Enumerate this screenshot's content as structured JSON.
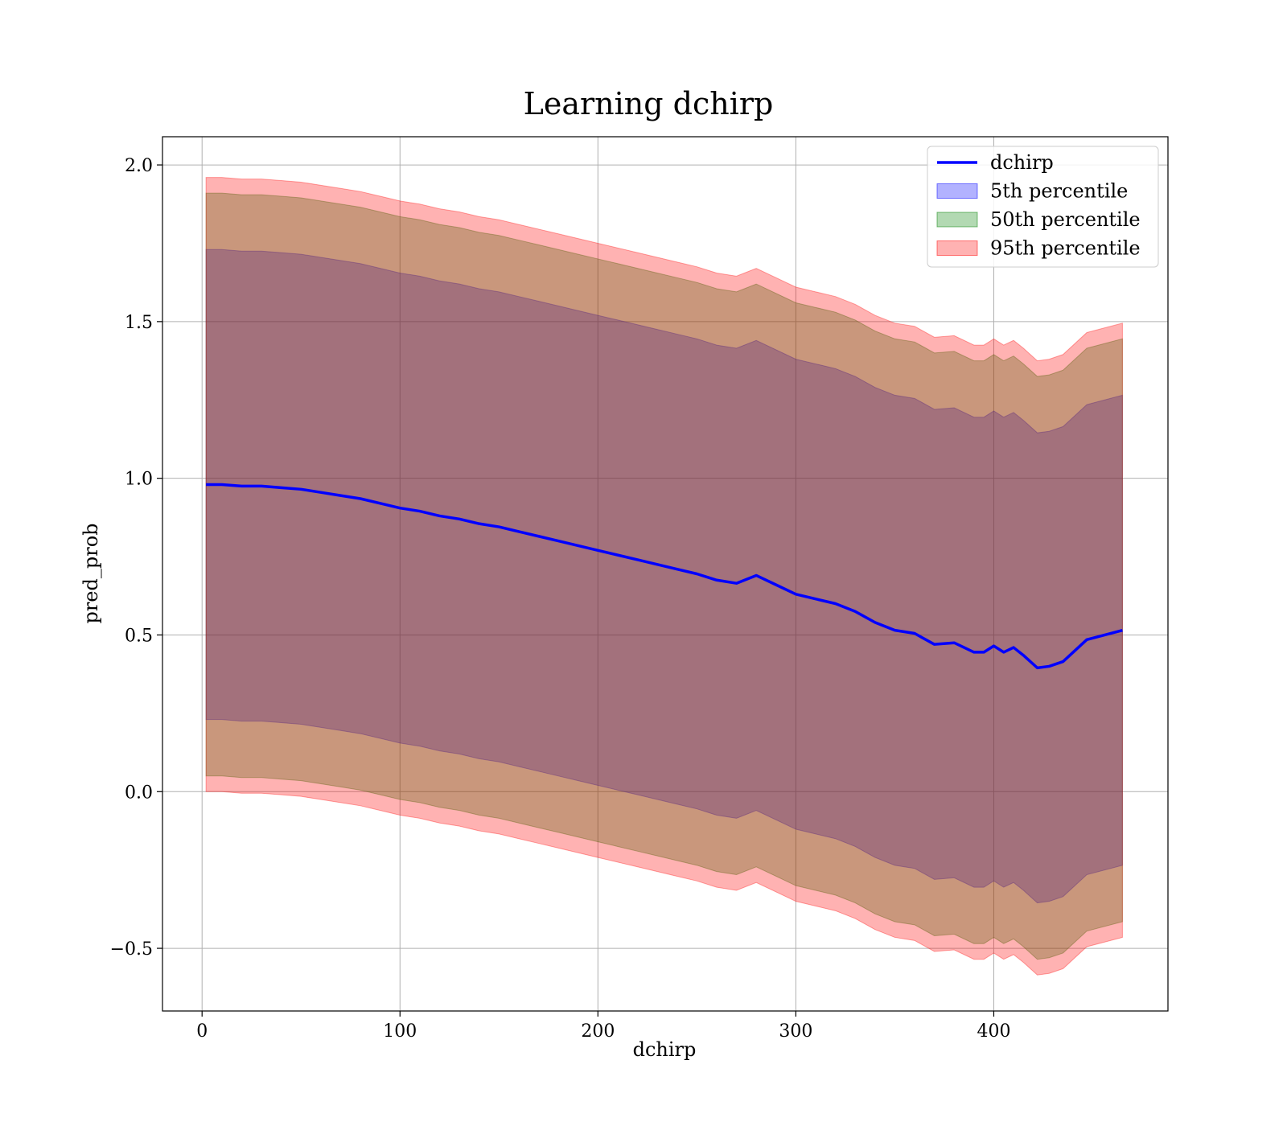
{
  "chart_data": {
    "type": "area",
    "title": "Learning dchirp",
    "xlabel": "dchirp",
    "ylabel": "pred_prob",
    "xlim": [
      -20,
      488
    ],
    "ylim": [
      -0.7,
      2.09
    ],
    "xticks": [
      0,
      100,
      200,
      300,
      400
    ],
    "xtick_labels": [
      "0",
      "100",
      "200",
      "300",
      "400"
    ],
    "yticks": [
      -0.5,
      0.0,
      0.5,
      1.0,
      1.5,
      2.0
    ],
    "ytick_labels": [
      "−0.5",
      "0.0",
      "0.5",
      "1.0",
      "1.5",
      "2.0"
    ],
    "grid": true,
    "legend_position": "upper right",
    "colors": {
      "line": "#0000ff",
      "band_5th": "#0000ff",
      "band_50th": "#008000",
      "band_95th": "#ff0000"
    },
    "band_alpha": 0.3,
    "series": [
      {
        "name": "dchirp",
        "kind": "line",
        "x": [
          2,
          10,
          20,
          30,
          40,
          50,
          60,
          70,
          80,
          90,
          100,
          110,
          120,
          130,
          140,
          150,
          160,
          170,
          180,
          190,
          200,
          210,
          220,
          230,
          240,
          250,
          260,
          270,
          280,
          290,
          300,
          310,
          320,
          330,
          340,
          350,
          360,
          370,
          380,
          390,
          395,
          400,
          405,
          410,
          415,
          422,
          428,
          435,
          447,
          465
        ],
        "y": [
          0.98,
          0.98,
          0.975,
          0.975,
          0.97,
          0.965,
          0.955,
          0.945,
          0.935,
          0.92,
          0.905,
          0.895,
          0.88,
          0.87,
          0.855,
          0.845,
          0.83,
          0.815,
          0.8,
          0.785,
          0.77,
          0.755,
          0.74,
          0.725,
          0.71,
          0.695,
          0.675,
          0.665,
          0.69,
          0.66,
          0.63,
          0.615,
          0.6,
          0.575,
          0.54,
          0.515,
          0.505,
          0.47,
          0.475,
          0.445,
          0.445,
          0.465,
          0.445,
          0.46,
          0.435,
          0.395,
          0.4,
          0.415,
          0.485,
          0.515
        ]
      },
      {
        "name": "5th percentile",
        "kind": "band",
        "x": [
          2,
          10,
          20,
          30,
          40,
          50,
          60,
          70,
          80,
          90,
          100,
          110,
          120,
          130,
          140,
          150,
          160,
          170,
          180,
          190,
          200,
          210,
          220,
          230,
          240,
          250,
          260,
          270,
          280,
          290,
          300,
          310,
          320,
          330,
          340,
          350,
          360,
          370,
          380,
          390,
          395,
          400,
          405,
          410,
          415,
          422,
          428,
          435,
          447,
          465
        ],
        "lower": [
          0.23,
          0.23,
          0.225,
          0.225,
          0.22,
          0.215,
          0.205,
          0.195,
          0.185,
          0.17,
          0.155,
          0.145,
          0.13,
          0.12,
          0.105,
          0.095,
          0.08,
          0.065,
          0.05,
          0.035,
          0.02,
          0.005,
          -0.01,
          -0.025,
          -0.04,
          -0.055,
          -0.075,
          -0.085,
          -0.06,
          -0.09,
          -0.12,
          -0.135,
          -0.15,
          -0.175,
          -0.21,
          -0.235,
          -0.245,
          -0.28,
          -0.275,
          -0.305,
          -0.305,
          -0.285,
          -0.305,
          -0.29,
          -0.315,
          -0.355,
          -0.35,
          -0.335,
          -0.265,
          -0.235
        ],
        "upper": [
          1.73,
          1.73,
          1.725,
          1.725,
          1.72,
          1.715,
          1.705,
          1.695,
          1.685,
          1.67,
          1.655,
          1.645,
          1.63,
          1.62,
          1.605,
          1.595,
          1.58,
          1.565,
          1.55,
          1.535,
          1.52,
          1.505,
          1.49,
          1.475,
          1.46,
          1.445,
          1.425,
          1.415,
          1.44,
          1.41,
          1.38,
          1.365,
          1.35,
          1.325,
          1.29,
          1.265,
          1.255,
          1.22,
          1.225,
          1.195,
          1.195,
          1.215,
          1.195,
          1.21,
          1.185,
          1.145,
          1.15,
          1.165,
          1.235,
          1.265
        ]
      },
      {
        "name": "50th percentile",
        "kind": "band",
        "x": [
          2,
          10,
          20,
          30,
          40,
          50,
          60,
          70,
          80,
          90,
          100,
          110,
          120,
          130,
          140,
          150,
          160,
          170,
          180,
          190,
          200,
          210,
          220,
          230,
          240,
          250,
          260,
          270,
          280,
          290,
          300,
          310,
          320,
          330,
          340,
          350,
          360,
          370,
          380,
          390,
          395,
          400,
          405,
          410,
          415,
          422,
          428,
          435,
          447,
          465
        ],
        "lower": [
          0.05,
          0.05,
          0.045,
          0.045,
          0.04,
          0.035,
          0.025,
          0.015,
          0.005,
          -0.01,
          -0.025,
          -0.035,
          -0.05,
          -0.06,
          -0.075,
          -0.085,
          -0.1,
          -0.115,
          -0.13,
          -0.145,
          -0.16,
          -0.175,
          -0.19,
          -0.205,
          -0.22,
          -0.235,
          -0.255,
          -0.265,
          -0.24,
          -0.27,
          -0.3,
          -0.315,
          -0.33,
          -0.355,
          -0.39,
          -0.415,
          -0.425,
          -0.46,
          -0.455,
          -0.485,
          -0.485,
          -0.465,
          -0.485,
          -0.47,
          -0.495,
          -0.535,
          -0.53,
          -0.515,
          -0.445,
          -0.415
        ],
        "upper": [
          1.91,
          1.91,
          1.905,
          1.905,
          1.9,
          1.895,
          1.885,
          1.875,
          1.865,
          1.85,
          1.835,
          1.825,
          1.81,
          1.8,
          1.785,
          1.775,
          1.76,
          1.745,
          1.73,
          1.715,
          1.7,
          1.685,
          1.67,
          1.655,
          1.64,
          1.625,
          1.605,
          1.595,
          1.62,
          1.59,
          1.56,
          1.545,
          1.53,
          1.505,
          1.47,
          1.445,
          1.435,
          1.4,
          1.405,
          1.375,
          1.375,
          1.395,
          1.375,
          1.39,
          1.365,
          1.325,
          1.33,
          1.345,
          1.415,
          1.445
        ]
      },
      {
        "name": "95th percentile",
        "kind": "band",
        "x": [
          2,
          10,
          20,
          30,
          40,
          50,
          60,
          70,
          80,
          90,
          100,
          110,
          120,
          130,
          140,
          150,
          160,
          170,
          180,
          190,
          200,
          210,
          220,
          230,
          240,
          250,
          260,
          270,
          280,
          290,
          300,
          310,
          320,
          330,
          340,
          350,
          360,
          370,
          380,
          390,
          395,
          400,
          405,
          410,
          415,
          422,
          428,
          435,
          447,
          465
        ],
        "lower": [
          0.0,
          0.0,
          -0.005,
          -0.005,
          -0.01,
          -0.015,
          -0.025,
          -0.035,
          -0.045,
          -0.06,
          -0.075,
          -0.085,
          -0.1,
          -0.11,
          -0.125,
          -0.135,
          -0.15,
          -0.165,
          -0.18,
          -0.195,
          -0.21,
          -0.225,
          -0.24,
          -0.255,
          -0.27,
          -0.285,
          -0.305,
          -0.315,
          -0.29,
          -0.32,
          -0.35,
          -0.365,
          -0.38,
          -0.405,
          -0.44,
          -0.465,
          -0.475,
          -0.51,
          -0.505,
          -0.535,
          -0.535,
          -0.515,
          -0.535,
          -0.52,
          -0.545,
          -0.585,
          -0.58,
          -0.565,
          -0.495,
          -0.465
        ],
        "upper": [
          1.96,
          1.96,
          1.955,
          1.955,
          1.95,
          1.945,
          1.935,
          1.925,
          1.915,
          1.9,
          1.885,
          1.875,
          1.86,
          1.85,
          1.835,
          1.825,
          1.81,
          1.795,
          1.78,
          1.765,
          1.75,
          1.735,
          1.72,
          1.705,
          1.69,
          1.675,
          1.655,
          1.645,
          1.67,
          1.64,
          1.61,
          1.595,
          1.58,
          1.555,
          1.52,
          1.495,
          1.485,
          1.45,
          1.455,
          1.425,
          1.425,
          1.445,
          1.425,
          1.44,
          1.415,
          1.375,
          1.38,
          1.395,
          1.465,
          1.495
        ]
      }
    ]
  }
}
